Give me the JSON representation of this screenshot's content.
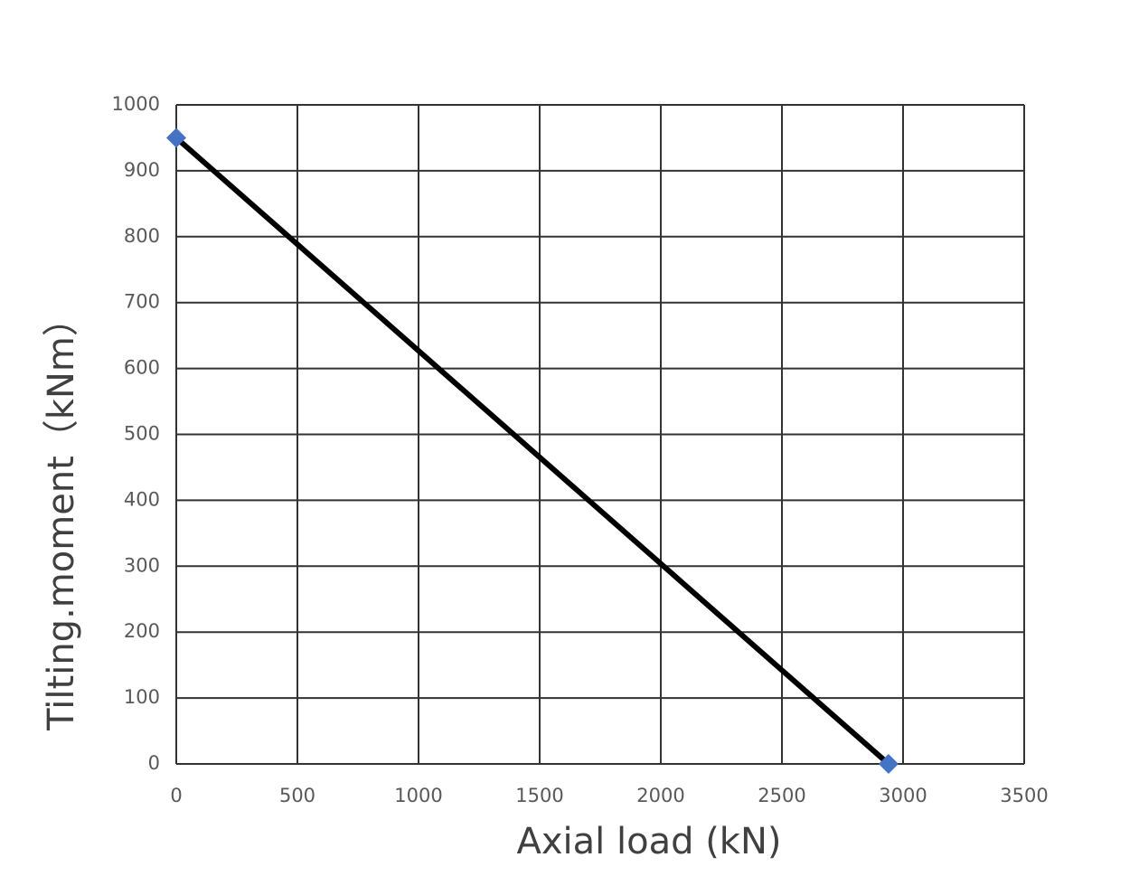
{
  "chart_data": {
    "type": "line",
    "x_label": "Axial load (kN)",
    "y_label": "Tilting.moment（kNm）",
    "x": [
      0,
      2940
    ],
    "series": [
      {
        "values": [
          950,
          0
        ],
        "color": "#000000",
        "marker_color": "#4472c4"
      }
    ],
    "xlim": [
      0,
      3500
    ],
    "xticks": [
      0,
      500,
      1000,
      1500,
      2000,
      2500,
      3000,
      3500
    ],
    "ylim": [
      0,
      1000
    ],
    "yticks": [
      0,
      100,
      200,
      300,
      400,
      500,
      600,
      700,
      800,
      900,
      1000
    ],
    "grid": true
  }
}
